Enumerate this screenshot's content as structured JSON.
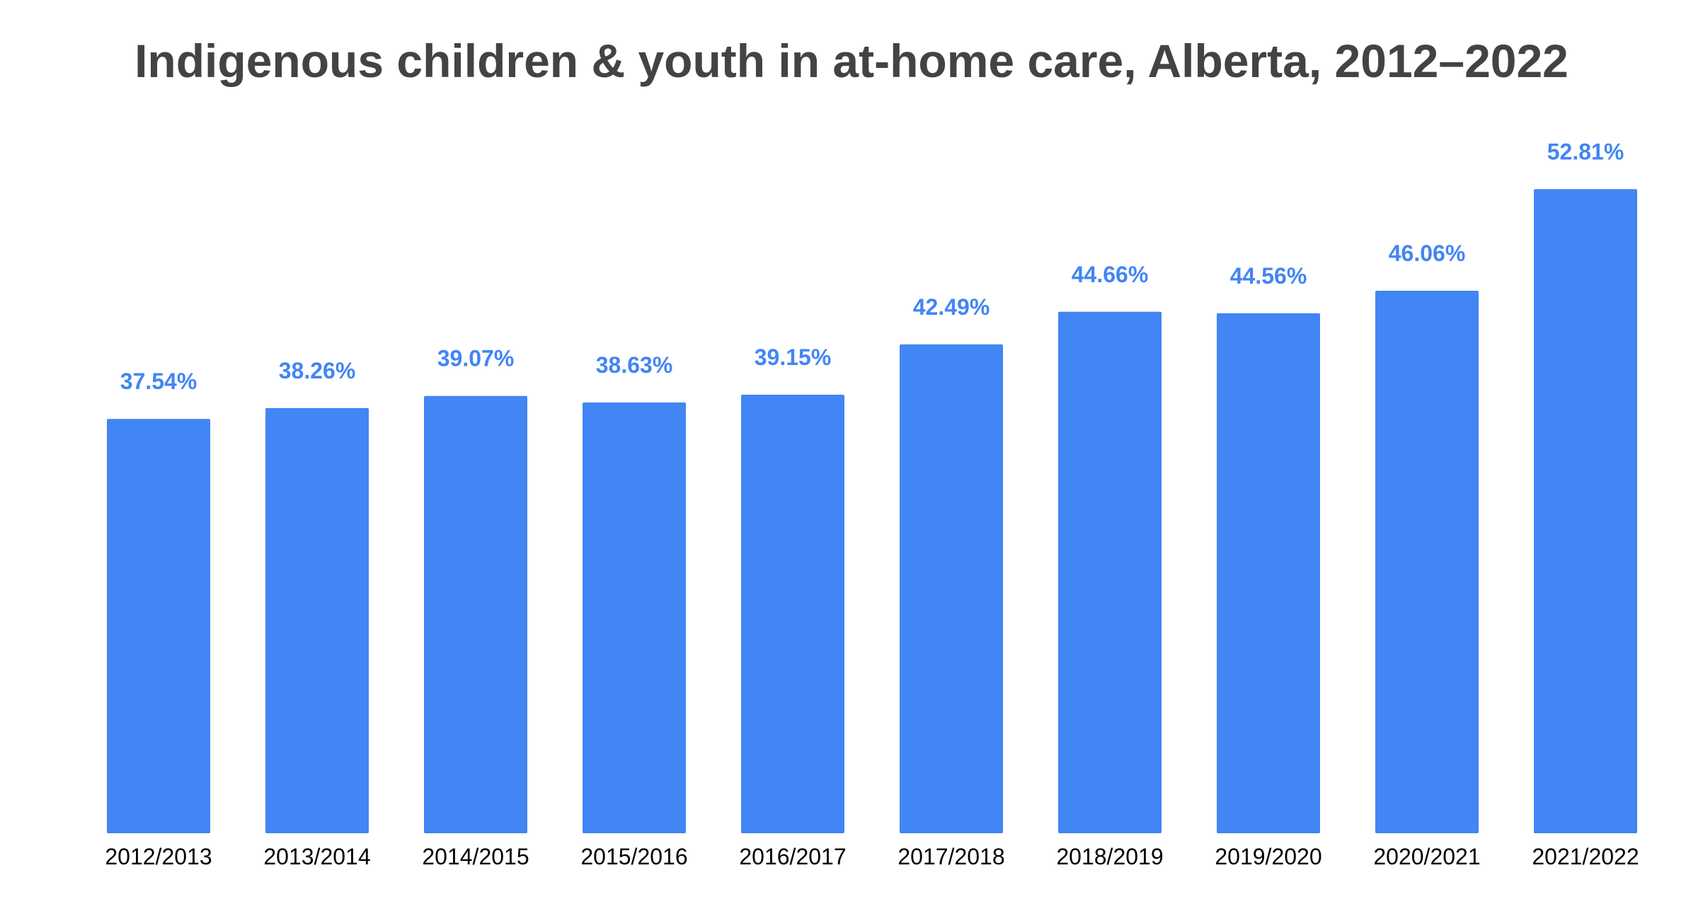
{
  "chart_data": {
    "type": "bar",
    "title": "Indigenous children & youth in at-home care, Alberta, 2012–2022",
    "categories": [
      "2012/2013",
      "2013/2014",
      "2014/2015",
      "2015/2016",
      "2016/2017",
      "2017/2018",
      "2018/2019",
      "2019/2020",
      "2020/2021",
      "2021/2022"
    ],
    "values": [
      37.54,
      38.26,
      39.07,
      38.63,
      39.15,
      42.49,
      44.66,
      44.56,
      46.06,
      52.81
    ],
    "data_labels": [
      "37.54%",
      "38.26%",
      "39.07%",
      "38.63%",
      "39.15%",
      "42.49%",
      "44.66%",
      "44.56%",
      "46.06%",
      "52.81%"
    ],
    "xlabel": "",
    "ylabel": "",
    "ylim": [
      10,
      53
    ],
    "grid": false,
    "legend": "none",
    "colors": {
      "bar": "#4285f4",
      "data_label": "#4285f4",
      "title": "#434343",
      "tick_label": "#000000"
    }
  }
}
